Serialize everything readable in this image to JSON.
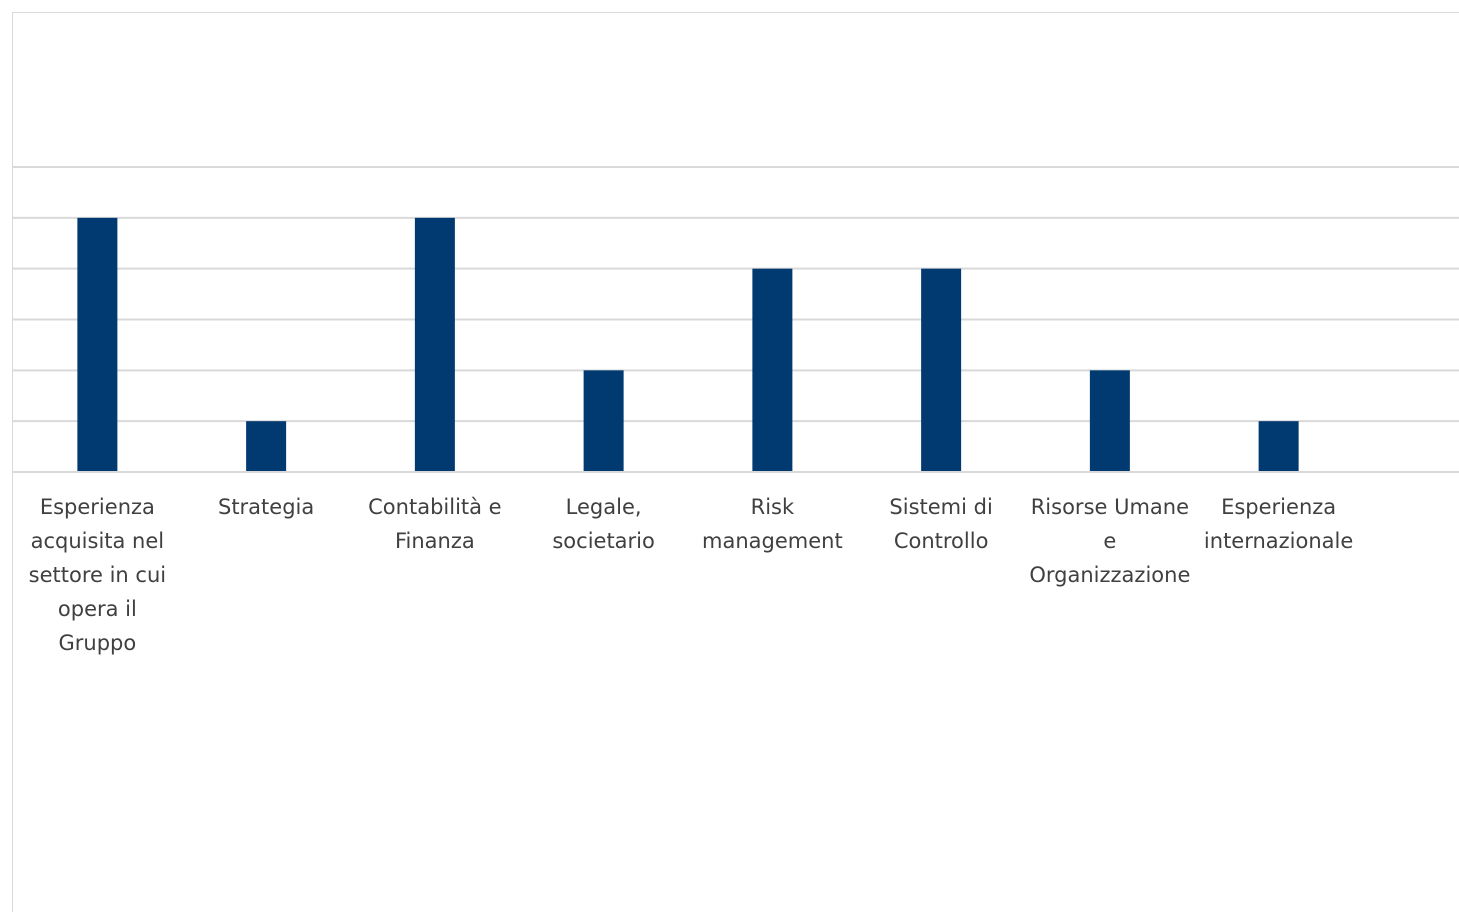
{
  "chart_data": {
    "type": "bar",
    "title": "",
    "xlabel": "",
    "ylabel": "",
    "categories": [
      "Esperienza acquisita nel settore in cui opera il Gruppo",
      "Strategia",
      "Contabilità e Finanza",
      "Legale, societario",
      "Risk management",
      "Sistemi di Controllo",
      "Risorse Umane e Organizzazione",
      "Esperienza internazionale"
    ],
    "category_label_lines": [
      "Esperienza\nacquisita nel\nsettore in cui\nopera il\nGruppo",
      "Strategia",
      "Contabilità e\nFinanza",
      "Legale,\nsocietario",
      "Risk\nmanagement",
      "Sistemi di\nControllo",
      "Risorse Umane\ne\nOrganizzazione",
      "Esperienza\ninternazionale"
    ],
    "values": [
      5,
      1,
      5,
      2,
      4,
      4,
      2,
      1
    ],
    "ylim": [
      0,
      6
    ],
    "y_tick_step": 1,
    "grid": true,
    "show_y_tick_labels": false,
    "legend": "none",
    "bar_color": "#003a70",
    "grid_color": "#d9d9d9"
  }
}
